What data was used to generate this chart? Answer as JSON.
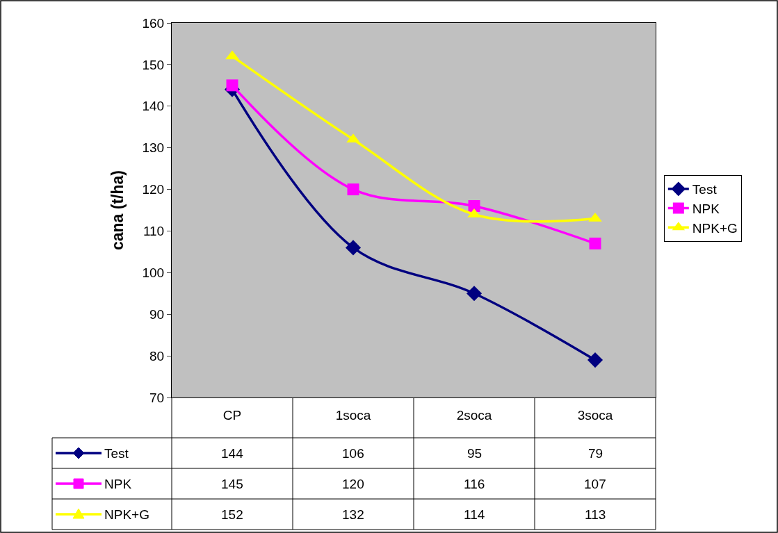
{
  "chart_data": {
    "type": "line",
    "ylabel": "cana (t/ha)",
    "categories": [
      "CP",
      "1soca",
      "2soca",
      "3soca"
    ],
    "series": [
      {
        "name": "Test",
        "color": "#000080",
        "marker": "diamond",
        "values": [
          144,
          106,
          95,
          79
        ]
      },
      {
        "name": "NPK",
        "color": "#ff00ff",
        "marker": "square",
        "values": [
          145,
          120,
          116,
          107
        ]
      },
      {
        "name": "NPK+G",
        "color": "#ffff00",
        "marker": "triangle",
        "values": [
          152,
          132,
          114,
          113
        ]
      }
    ],
    "ylim": [
      70,
      160
    ],
    "yticks": [
      70,
      80,
      90,
      100,
      110,
      120,
      130,
      140,
      150,
      160
    ],
    "legend": "right",
    "data_labels": true
  }
}
